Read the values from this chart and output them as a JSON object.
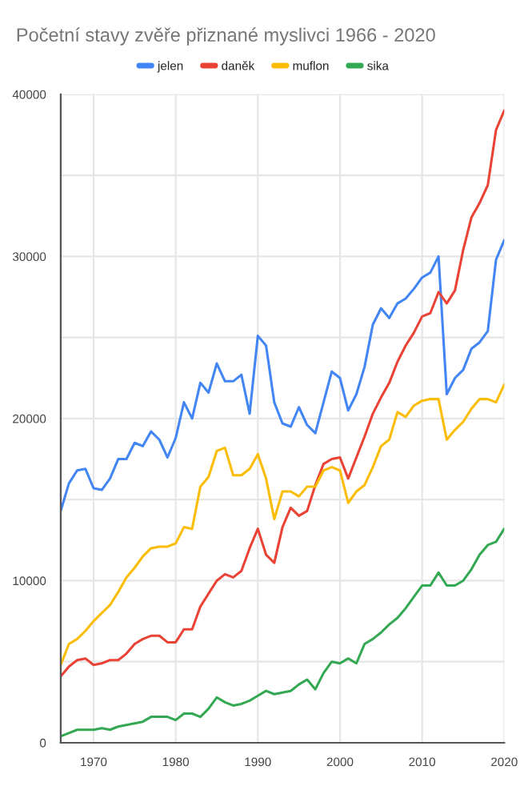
{
  "chart_data": {
    "type": "line",
    "title": "Početní stavy zvěře přiznané myslivci 1966 - 2020",
    "x": [
      1966,
      1967,
      1968,
      1969,
      1970,
      1971,
      1972,
      1973,
      1974,
      1975,
      1976,
      1977,
      1978,
      1979,
      1980,
      1981,
      1982,
      1983,
      1984,
      1985,
      1986,
      1987,
      1988,
      1989,
      1990,
      1991,
      1992,
      1993,
      1994,
      1995,
      1996,
      1997,
      1998,
      1999,
      2000,
      2001,
      2002,
      2003,
      2004,
      2005,
      2006,
      2007,
      2008,
      2009,
      2010,
      2011,
      2012,
      2013,
      2014,
      2015,
      2016,
      2017,
      2018,
      2019,
      2020
    ],
    "series": [
      {
        "name": "jelen",
        "color": "#4285f4",
        "values": [
          14300,
          16000,
          16800,
          16900,
          15700,
          15600,
          16300,
          17500,
          17500,
          18500,
          18300,
          19200,
          18700,
          17600,
          18800,
          21000,
          20000,
          22200,
          21600,
          23400,
          22300,
          22300,
          22700,
          20300,
          25100,
          24500,
          21000,
          19700,
          19500,
          20700,
          19600,
          19100,
          21000,
          22900,
          22500,
          20500,
          21500,
          23200,
          25800,
          26800,
          26200,
          27100,
          27400,
          28000,
          28700,
          29000,
          30000,
          21500,
          22500,
          23000,
          24300,
          24700,
          25400,
          29800,
          31000
        ]
      },
      {
        "name": "daněk",
        "color": "#ea4335",
        "values": [
          4100,
          4700,
          5100,
          5200,
          4800,
          4900,
          5100,
          5100,
          5500,
          6100,
          6400,
          6600,
          6600,
          6200,
          6200,
          7000,
          7000,
          8400,
          9200,
          10000,
          10400,
          10200,
          10600,
          12000,
          13200,
          11600,
          11100,
          13300,
          14500,
          14000,
          14300,
          15900,
          17200,
          17500,
          17600,
          16300,
          17600,
          18900,
          20300,
          21300,
          22200,
          23500,
          24500,
          25300,
          26300,
          26500,
          27800,
          27100,
          27900,
          30400,
          32400,
          33300,
          34400,
          37800,
          39000
        ]
      },
      {
        "name": "muflon",
        "color": "#fbbc04",
        "values": [
          4800,
          6100,
          6400,
          6900,
          7500,
          8000,
          8500,
          9300,
          10200,
          10800,
          11500,
          12000,
          12100,
          12100,
          12300,
          13300,
          13200,
          15800,
          16400,
          18000,
          18200,
          16500,
          16500,
          16900,
          17800,
          16300,
          13800,
          15500,
          15500,
          15200,
          15800,
          15800,
          16800,
          17000,
          16800,
          14800,
          15500,
          15900,
          17000,
          18300,
          18700,
          20400,
          20100,
          20800,
          21100,
          21200,
          21200,
          18700,
          19300,
          19800,
          20600,
          21200,
          21200,
          21000,
          22100
        ]
      },
      {
        "name": "sika",
        "color": "#34a853",
        "values": [
          400,
          600,
          800,
          800,
          800,
          900,
          800,
          1000,
          1100,
          1200,
          1300,
          1600,
          1600,
          1600,
          1400,
          1800,
          1800,
          1600,
          2100,
          2800,
          2500,
          2300,
          2400,
          2600,
          2900,
          3200,
          3000,
          3100,
          3200,
          3600,
          3900,
          3300,
          4300,
          5000,
          4900,
          5200,
          4900,
          6100,
          6400,
          6800,
          7300,
          7700,
          8300,
          9000,
          9700,
          9700,
          10500,
          9700,
          9700,
          10000,
          10700,
          11600,
          12200,
          12400,
          13200
        ]
      }
    ],
    "xlim": [
      1966,
      2020
    ],
    "xticks": [
      1970,
      1980,
      1990,
      2000,
      2010,
      2020
    ],
    "ylim": [
      0,
      40000
    ],
    "yticks": [
      0,
      {
        "value": 5000,
        "label": null
      },
      10000,
      {
        "value": 15000,
        "label": null
      },
      20000,
      {
        "value": 25000,
        "label": null
      },
      30000,
      {
        "value": 35000,
        "label": null
      },
      40000
    ],
    "grid": true,
    "legend": "top",
    "marker": "none",
    "line_style": "solid"
  }
}
